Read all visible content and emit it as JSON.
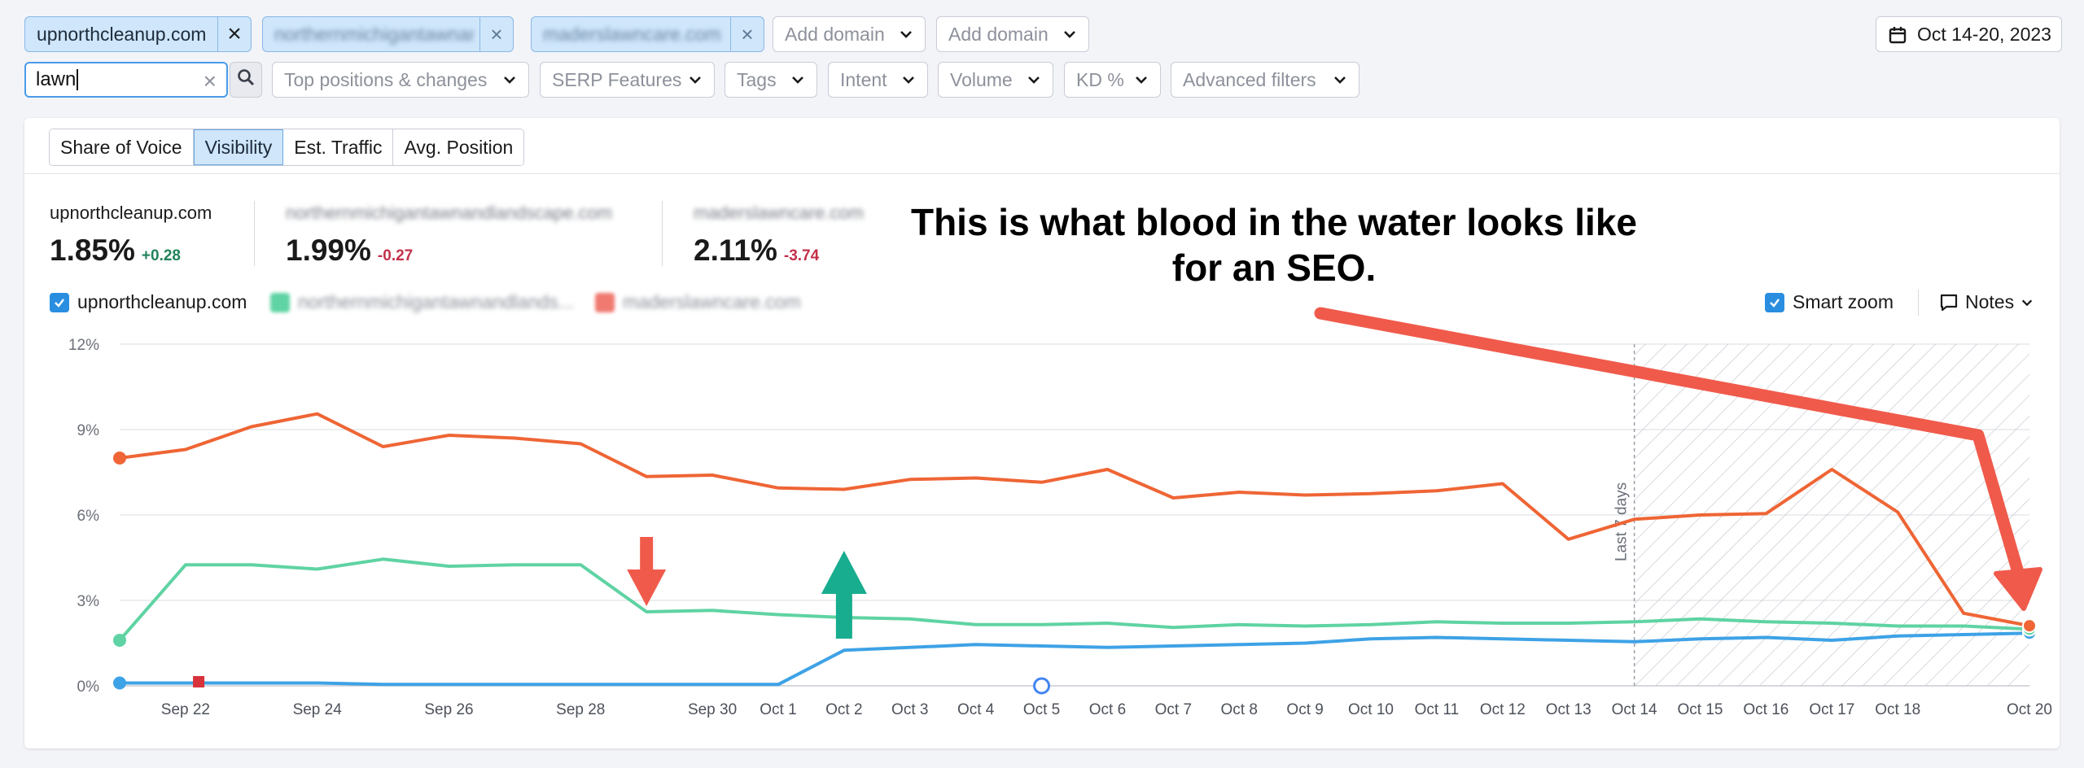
{
  "filters": {
    "primary_domain": "upnorthcleanup.com",
    "competitor_domain_1": "northernmichigantawnandlandscape.com",
    "competitor_domain_2": "maderslawncare.com",
    "add_domain_1": "Add domain",
    "add_domain_2": "Add domain",
    "date_range": "Oct 14-20, 2023",
    "search_value": "lawn",
    "dropdowns": [
      "Top positions & changes",
      "SERP Features",
      "Tags",
      "Intent",
      "Volume",
      "KD %",
      "Advanced filters"
    ]
  },
  "tabs": [
    {
      "label": "Share of Voice",
      "active": false
    },
    {
      "label": "Visibility",
      "active": true
    },
    {
      "label": "Est. Traffic",
      "active": false
    },
    {
      "label": "Avg. Position",
      "active": false
    }
  ],
  "metrics": [
    {
      "domain": "upnorthcleanup.com",
      "value": "1.85%",
      "delta": "+0.28"
    },
    {
      "domain": "northernmichigantawnandlandscape.com",
      "value": "1.99%",
      "delta": "-0.27"
    },
    {
      "domain": "maderslawncare.com",
      "value": "2.11%",
      "delta": "-3.74"
    }
  ],
  "legend": {
    "series": [
      "upnorthcleanup.com",
      "northernmichigantawnandlands...",
      "maderslawncare.com"
    ],
    "smart_zoom": "Smart zoom",
    "notes": "Notes"
  },
  "annotation": "This is what blood in the water looks like for an SEO.",
  "colors": {
    "blue": "#3ea2e6",
    "green": "#5fd3a3",
    "orange": "#ef6535",
    "red_arrow": "#f05a4b",
    "teal_arrow": "#18ad8f"
  },
  "chart_data": {
    "type": "line",
    "x": [
      "Sep 21",
      "Sep 22",
      "Sep 23",
      "Sep 24",
      "Sep 25",
      "Sep 26",
      "Sep 27",
      "Sep 28",
      "Sep 29",
      "Sep 30",
      "Oct 1",
      "Oct 2",
      "Oct 3",
      "Oct 4",
      "Oct 5",
      "Oct 6",
      "Oct 7",
      "Oct 8",
      "Oct 9",
      "Oct 10",
      "Oct 11",
      "Oct 12",
      "Oct 13",
      "Oct 14",
      "Oct 15",
      "Oct 16",
      "Oct 17",
      "Oct 18",
      "Oct 19",
      "Oct 20"
    ],
    "x_tick_labels": [
      "Sep 22",
      "Sep 24",
      "Sep 26",
      "Sep 28",
      "Sep 30",
      "Oct 1",
      "Oct 2",
      "Oct 3",
      "Oct 4",
      "Oct 5",
      "Oct 6",
      "Oct 7",
      "Oct 8",
      "Oct 9",
      "Oct 10",
      "Oct 11",
      "Oct 12",
      "Oct 13",
      "Oct 14",
      "Oct 15",
      "Oct 16",
      "Oct 17",
      "Oct 18",
      "Oct 20"
    ],
    "y_ticks": [
      "0%",
      "3%",
      "6%",
      "9%",
      "12%"
    ],
    "ylim": [
      0,
      12
    ],
    "shaded_region_label": "Last 7 days",
    "series": [
      {
        "name": "upnorthcleanup.com",
        "color": "#3ea2e6",
        "values": [
          0.1,
          0.1,
          0.1,
          0.1,
          0.05,
          0.05,
          0.05,
          0.05,
          0.05,
          0.05,
          0.05,
          1.25,
          1.35,
          1.45,
          1.4,
          1.35,
          1.4,
          1.45,
          1.5,
          1.65,
          1.7,
          1.65,
          1.6,
          1.55,
          1.65,
          1.7,
          1.6,
          1.75,
          1.8,
          1.85
        ]
      },
      {
        "name": "northernmichigantawnandlandscape.com",
        "color": "#5fd3a3",
        "values": [
          1.6,
          4.25,
          4.25,
          4.1,
          4.45,
          4.2,
          4.25,
          4.25,
          2.6,
          2.65,
          2.5,
          2.4,
          2.35,
          2.15,
          2.15,
          2.2,
          2.05,
          2.15,
          2.1,
          2.15,
          2.25,
          2.2,
          2.2,
          2.25,
          2.35,
          2.25,
          2.2,
          2.1,
          2.1,
          1.99
        ]
      },
      {
        "name": "maderslawncare.com",
        "color": "#ef6535",
        "values": [
          8.0,
          8.3,
          9.1,
          9.55,
          8.4,
          8.8,
          8.7,
          8.5,
          7.35,
          7.4,
          6.95,
          6.9,
          7.25,
          7.3,
          7.15,
          7.6,
          6.6,
          6.8,
          6.7,
          6.75,
          6.85,
          7.1,
          5.15,
          5.85,
          6.0,
          6.05,
          7.6,
          6.1,
          2.55,
          2.11
        ]
      }
    ]
  }
}
